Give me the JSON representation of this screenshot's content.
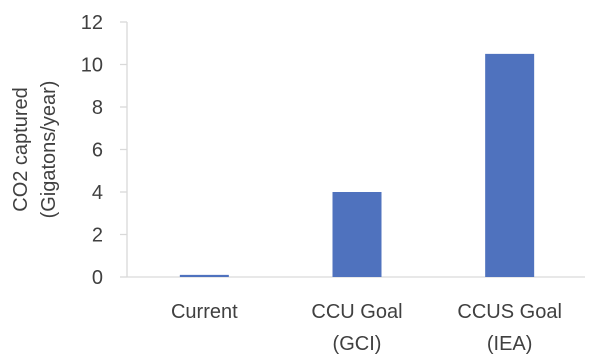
{
  "chart_data": {
    "type": "bar",
    "title": "",
    "xlabel": "",
    "ylabel_lines": [
      "CO2 captured",
      "(Gigatons/year)"
    ],
    "ylim": [
      0,
      12
    ],
    "yticks": [
      "0",
      "2",
      "4",
      "6",
      "8",
      "10",
      "12"
    ],
    "categories": [
      [
        "Current"
      ],
      [
        "CCU Goal",
        "(GCI)"
      ],
      [
        "CCUS Goal",
        "(IEA)"
      ]
    ],
    "values": [
      0.1,
      4,
      10.5
    ],
    "grid": false,
    "legend": "none",
    "bar_color": "#4f72be",
    "axis_color": "#d9d9d9",
    "text_color": "#404040"
  }
}
